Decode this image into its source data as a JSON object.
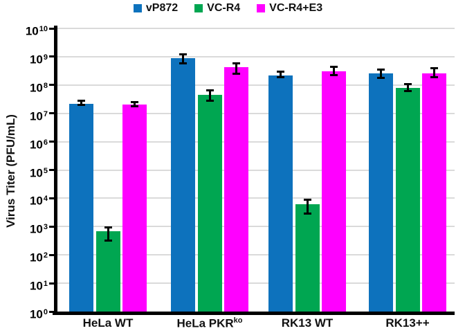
{
  "figure": {
    "background": "#ffffff",
    "text_color": "#111111",
    "gridline_color": "#dadada"
  },
  "chart_data": {
    "type": "bar",
    "yscale": "log",
    "title": "",
    "ylabel": "Virus Titer (PFU/mL)",
    "xlabel": "",
    "ylim": [
      1,
      10000000000.0
    ],
    "ytick_base": "10",
    "ytick_exponents": [
      0,
      1,
      2,
      3,
      4,
      5,
      6,
      7,
      8,
      9,
      10
    ],
    "grid": "horizontal",
    "legend_position": "top-center",
    "categories": [
      {
        "label": "HeLa WT",
        "sup": ""
      },
      {
        "label": "HeLa PKR",
        "sup": "ko"
      },
      {
        "label": "RK13 WT",
        "sup": ""
      },
      {
        "label": "RK13++",
        "sup": ""
      }
    ],
    "series": [
      {
        "name": "vP872",
        "color": "#0d72bd",
        "values": [
          22000000.0,
          900000000.0,
          220000000.0,
          260000000.0
        ],
        "err_lo": [
          18000000.0,
          550000000.0,
          170000000.0,
          160000000.0
        ],
        "err_hi": [
          30000000.0,
          1300000000.0,
          320000000.0,
          380000000.0
        ]
      },
      {
        "name": "VC-R4",
        "color": "#00a651",
        "values": [
          700.0,
          44000000.0,
          6000.0,
          78000000.0
        ],
        "err_lo": [
          300.0,
          26000000.0,
          2700.0,
          55000000.0
        ],
        "err_hi": [
          1000.0,
          70000000.0,
          9500.0,
          115000000.0
        ]
      },
      {
        "name": "VC-R4+E3",
        "color": "#ff00ff",
        "values": [
          20000000.0,
          420000000.0,
          310000000.0,
          260000000.0
        ],
        "err_lo": [
          16000000.0,
          230000000.0,
          210000000.0,
          170000000.0
        ],
        "err_hi": [
          27000000.0,
          630000000.0,
          480000000.0,
          420000000.0
        ]
      }
    ]
  }
}
